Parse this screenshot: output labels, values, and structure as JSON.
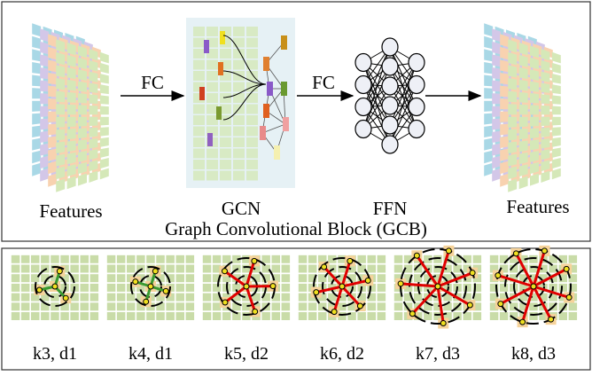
{
  "top": {
    "fc_left": "FC",
    "fc_right": "FC",
    "features_in": "Features",
    "gcn": "GCN",
    "ffn": "FFN",
    "features_out": "Features",
    "title": "Graph Convolutional Block (GCB)"
  },
  "bottom": {
    "captions": [
      "k3, d1",
      "k4, d1",
      "k5, d2",
      "k6, d2",
      "k7, d3",
      "k8, d3"
    ]
  }
}
